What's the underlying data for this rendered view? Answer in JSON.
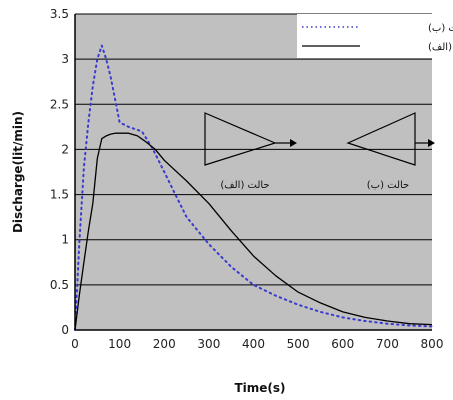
{
  "chart_data": {
    "type": "line",
    "xlabel": "Time(s)",
    "ylabel": "Discharge(lit/min)",
    "xlim": [
      0,
      800
    ],
    "ylim": [
      0,
      3.5
    ],
    "xticks": [
      "0",
      "100",
      "200",
      "300",
      "400",
      "500",
      "600",
      "700",
      "800"
    ],
    "yticks": [
      "0",
      "0.5",
      "1",
      "1.5",
      "2",
      "2.5",
      "3",
      "3.5"
    ],
    "grid": "horizontal",
    "legend_position": "top-right",
    "background_color": "#c0c0c0",
    "series": [
      {
        "name": "حالت (ب)",
        "style": "dotted",
        "color": "#3a3ad0",
        "x": [
          0,
          10,
          20,
          30,
          40,
          50,
          60,
          70,
          80,
          90,
          100,
          120,
          150,
          175,
          200,
          225,
          250,
          300,
          350,
          400,
          450,
          500,
          550,
          600,
          650,
          700,
          750,
          800
        ],
        "y": [
          0,
          1.0,
          1.8,
          2.3,
          2.7,
          3.0,
          3.15,
          3.0,
          2.8,
          2.55,
          2.3,
          2.25,
          2.2,
          2.0,
          1.75,
          1.5,
          1.25,
          0.95,
          0.7,
          0.5,
          0.38,
          0.28,
          0.2,
          0.14,
          0.1,
          0.07,
          0.05,
          0.04
        ]
      },
      {
        "name": "حالت (الف)",
        "style": "solid",
        "color": "#000000",
        "x": [
          0,
          10,
          20,
          30,
          40,
          50,
          60,
          70,
          80,
          90,
          100,
          120,
          140,
          160,
          180,
          200,
          250,
          300,
          350,
          400,
          450,
          500,
          550,
          600,
          650,
          700,
          750,
          800
        ],
        "y": [
          0,
          0.4,
          0.75,
          1.1,
          1.4,
          1.9,
          2.12,
          2.15,
          2.17,
          2.18,
          2.18,
          2.18,
          2.15,
          2.08,
          2.0,
          1.88,
          1.65,
          1.4,
          1.1,
          0.82,
          0.6,
          0.42,
          0.3,
          0.2,
          0.14,
          0.1,
          0.07,
          0.06
        ]
      }
    ],
    "annotations": [
      {
        "id": "alef",
        "label": "حالت (الف)"
      },
      {
        "id": "beh",
        "label": "حالت (ب)"
      }
    ]
  }
}
